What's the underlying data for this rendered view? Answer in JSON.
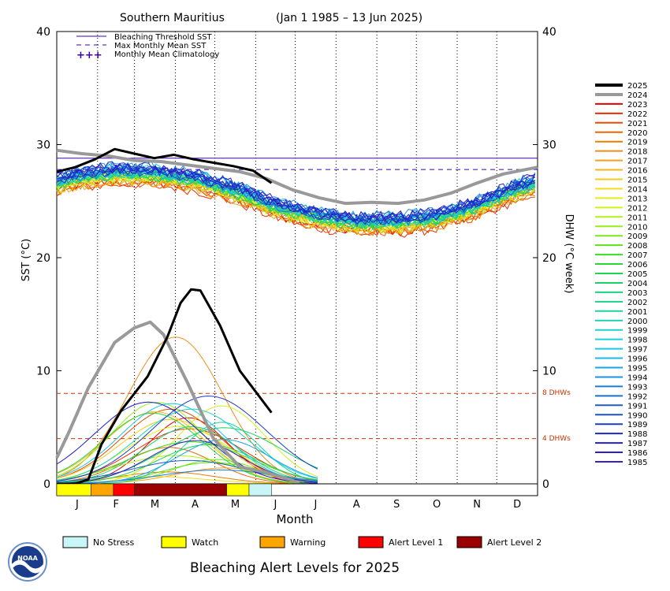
{
  "title": {
    "location": "Southern Mauritius",
    "range": "(Jan 1 1985 – 13 Jun 2025)"
  },
  "legend_top": [
    {
      "label": "Bleaching Threshold SST",
      "style": "solid",
      "color": "#3b00b3"
    },
    {
      "label": "Max Monthly Mean SST",
      "style": "dashed",
      "color": "#3b00b3"
    },
    {
      "label": "Monthly Mean Climatology",
      "style": "plus",
      "color": "#3b00b3"
    }
  ],
  "axes": {
    "left_label": "SST (°C)",
    "right_label": "DHW (°C week)",
    "x_label": "Month",
    "left_ticks": [
      "0",
      "10",
      "20",
      "30",
      "40"
    ],
    "right_ticks": [
      "0",
      "10",
      "20",
      "30",
      "40"
    ],
    "months": [
      "J",
      "F",
      "M",
      "A",
      "M",
      "J",
      "J",
      "A",
      "S",
      "O",
      "N",
      "D"
    ]
  },
  "dhw_lines": [
    {
      "label": "8 DHWs",
      "value": 8
    },
    {
      "label": "4 DHWs",
      "value": 4
    }
  ],
  "year_legend": [
    {
      "year": "2025",
      "color": "#000000"
    },
    {
      "year": "2024",
      "color": "#999999"
    },
    {
      "year": "2023",
      "color": "#e60000"
    },
    {
      "year": "2022",
      "color": "#e62e00"
    },
    {
      "year": "2021",
      "color": "#e84a00"
    },
    {
      "year": "2020",
      "color": "#eb6600"
    },
    {
      "year": "2019",
      "color": "#ee7a00"
    },
    {
      "year": "2018",
      "color": "#f08c1a"
    },
    {
      "year": "2017",
      "color": "#f2a21a"
    },
    {
      "year": "2016",
      "color": "#f4b41a"
    },
    {
      "year": "2015",
      "color": "#f5c81a"
    },
    {
      "year": "2014",
      "color": "#f3dc1a"
    },
    {
      "year": "2013",
      "color": "#e6ee1a"
    },
    {
      "year": "2012",
      "color": "#d2f01a"
    },
    {
      "year": "2011",
      "color": "#b4f01a"
    },
    {
      "year": "2010",
      "color": "#96ee1a"
    },
    {
      "year": "2009",
      "color": "#78e81a"
    },
    {
      "year": "2008",
      "color": "#5ae21a"
    },
    {
      "year": "2007",
      "color": "#3cdc1e"
    },
    {
      "year": "2006",
      "color": "#28d837"
    },
    {
      "year": "2005",
      "color": "#1ed450"
    },
    {
      "year": "2004",
      "color": "#1ad264"
    },
    {
      "year": "2003",
      "color": "#1ad278"
    },
    {
      "year": "2002",
      "color": "#1ad28c"
    },
    {
      "year": "2001",
      "color": "#1ad2a0"
    },
    {
      "year": "2000",
      "color": "#1ad2b4"
    },
    {
      "year": "1999",
      "color": "#1ad2c8"
    },
    {
      "year": "1998",
      "color": "#1ad2dc"
    },
    {
      "year": "1997",
      "color": "#1ac8e6"
    },
    {
      "year": "1996",
      "color": "#1ab9eb"
    },
    {
      "year": "1995",
      "color": "#1aa5eb"
    },
    {
      "year": "1994",
      "color": "#1a91e6"
    },
    {
      "year": "1993",
      "color": "#1a7ddc"
    },
    {
      "year": "1992",
      "color": "#1a6ed2"
    },
    {
      "year": "1991",
      "color": "#1a5fc8"
    },
    {
      "year": "1990",
      "color": "#1a50c8"
    },
    {
      "year": "1989",
      "color": "#1a3cc8"
    },
    {
      "year": "1988",
      "color": "#1a28c8"
    },
    {
      "year": "1987",
      "color": "#1e1ec8"
    },
    {
      "year": "1986",
      "color": "#2d1ec8"
    },
    {
      "year": "1985",
      "color": "#3c1ec8"
    }
  ],
  "alert_legend": [
    {
      "label": "No Stress",
      "color": "#c8f5f5"
    },
    {
      "label": "Watch",
      "color": "#ffff00"
    },
    {
      "label": "Warning",
      "color": "#ffa500"
    },
    {
      "label": "Alert Level 1",
      "color": "#ff0000"
    },
    {
      "label": "Alert Level 2",
      "color": "#990000"
    }
  ],
  "footer_title": "Bleaching Alert Levels for 2025",
  "logo_text": "NOAA",
  "chart_data": {
    "type": "line",
    "x_unit": "day of year",
    "xlim": [
      1,
      366
    ],
    "ylim_sst": [
      0,
      40
    ],
    "ylim_dhw": [
      0,
      40
    ],
    "bleaching_threshold_sst": 28.8,
    "max_monthly_mean_sst": 27.8,
    "climatology": [
      {
        "month": "J",
        "sst": 27.4
      },
      {
        "month": "F",
        "sst": 27.8
      },
      {
        "month": "M",
        "sst": 27.7
      },
      {
        "month": "A",
        "sst": 27.2
      },
      {
        "month": "M",
        "sst": 26.2
      },
      {
        "month": "J",
        "sst": 24.8
      },
      {
        "month": "J",
        "sst": 23.9
      },
      {
        "month": "A",
        "sst": 23.4
      },
      {
        "month": "S",
        "sst": 23.4
      },
      {
        "month": "O",
        "sst": 23.8
      },
      {
        "month": "N",
        "sst": 24.8
      },
      {
        "month": "D",
        "sst": 26.4
      }
    ],
    "sst_2025": [
      {
        "day": 1,
        "v": 27.6
      },
      {
        "day": 15,
        "v": 28.0
      },
      {
        "day": 30,
        "v": 28.7
      },
      {
        "day": 45,
        "v": 29.6
      },
      {
        "day": 60,
        "v": 29.2
      },
      {
        "day": 75,
        "v": 28.8
      },
      {
        "day": 90,
        "v": 29.1
      },
      {
        "day": 105,
        "v": 28.7
      },
      {
        "day": 120,
        "v": 28.4
      },
      {
        "day": 135,
        "v": 28.1
      },
      {
        "day": 150,
        "v": 27.7
      },
      {
        "day": 164,
        "v": 26.6
      }
    ],
    "sst_2024": [
      {
        "day": 1,
        "v": 29.5
      },
      {
        "day": 20,
        "v": 29.2
      },
      {
        "day": 40,
        "v": 29.0
      },
      {
        "day": 60,
        "v": 28.6
      },
      {
        "day": 80,
        "v": 28.5
      },
      {
        "day": 100,
        "v": 28.2
      },
      {
        "day": 120,
        "v": 27.9
      },
      {
        "day": 140,
        "v": 27.6
      },
      {
        "day": 160,
        "v": 27.0
      },
      {
        "day": 180,
        "v": 26.0
      },
      {
        "day": 200,
        "v": 25.3
      },
      {
        "day": 220,
        "v": 24.8
      },
      {
        "day": 240,
        "v": 24.9
      },
      {
        "day": 260,
        "v": 24.8
      },
      {
        "day": 280,
        "v": 25.1
      },
      {
        "day": 300,
        "v": 25.7
      },
      {
        "day": 320,
        "v": 26.6
      },
      {
        "day": 340,
        "v": 27.4
      },
      {
        "day": 366,
        "v": 28.0
      }
    ],
    "dhw_2025": [
      {
        "day": 1,
        "v": 0
      },
      {
        "day": 15,
        "v": 0
      },
      {
        "day": 25,
        "v": 0.4
      },
      {
        "day": 35,
        "v": 3.5
      },
      {
        "day": 50,
        "v": 6.5
      },
      {
        "day": 70,
        "v": 9.5
      },
      {
        "day": 85,
        "v": 13.0
      },
      {
        "day": 95,
        "v": 16.0
      },
      {
        "day": 103,
        "v": 17.2
      },
      {
        "day": 110,
        "v": 17.1
      },
      {
        "day": 125,
        "v": 14.0
      },
      {
        "day": 140,
        "v": 10.0
      },
      {
        "day": 164,
        "v": 6.3
      }
    ],
    "dhw_2024": [
      {
        "day": 1,
        "v": 2.3
      },
      {
        "day": 10,
        "v": 4.5
      },
      {
        "day": 25,
        "v": 8.5
      },
      {
        "day": 45,
        "v": 12.5
      },
      {
        "day": 60,
        "v": 13.8
      },
      {
        "day": 72,
        "v": 14.3
      },
      {
        "day": 82,
        "v": 13.2
      },
      {
        "day": 100,
        "v": 9.0
      },
      {
        "day": 120,
        "v": 4.0
      },
      {
        "day": 140,
        "v": 1.5
      },
      {
        "day": 160,
        "v": 1.0
      },
      {
        "day": 180,
        "v": 0.3
      },
      {
        "day": 185,
        "v": 0
      }
    ],
    "alert_bar_2025": [
      {
        "from": 1,
        "to": 27,
        "level": "Watch"
      },
      {
        "from": 27,
        "to": 44,
        "level": "Warning"
      },
      {
        "from": 44,
        "to": 60,
        "level": "Alert Level 1"
      },
      {
        "from": 60,
        "to": 130,
        "level": "Alert Level 2"
      },
      {
        "from": 130,
        "to": 147,
        "level": "Watch"
      },
      {
        "from": 147,
        "to": 164,
        "level": "No Stress"
      }
    ]
  }
}
